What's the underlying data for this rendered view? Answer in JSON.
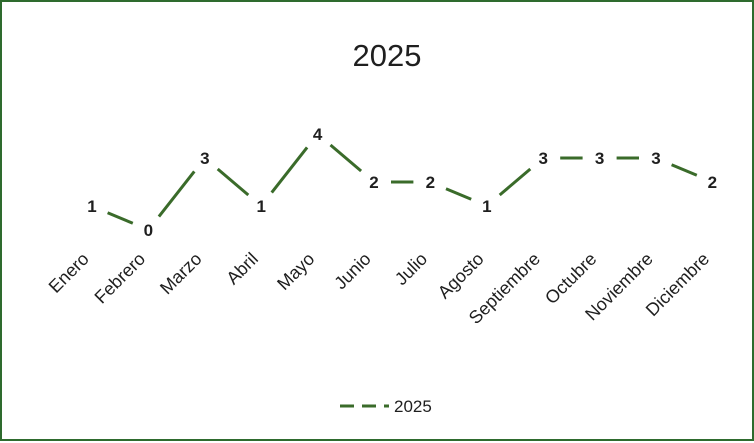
{
  "chart_data": {
    "type": "line",
    "title": "2025",
    "categories": [
      "Enero",
      "Febrero",
      "Marzo",
      "Abril",
      "Mayo",
      "Junio",
      "Julio",
      "Agosto",
      "Septiembre",
      "Octubre",
      "Noviembre",
      "Diciembre"
    ],
    "series": [
      {
        "name": "2025",
        "values": [
          1,
          0,
          3,
          1,
          4,
          2,
          2,
          1,
          3,
          3,
          3,
          2
        ],
        "color": "#3a6b2a"
      }
    ],
    "ylim": [
      0,
      4
    ],
    "grid": false,
    "legend_position": "bottom"
  }
}
